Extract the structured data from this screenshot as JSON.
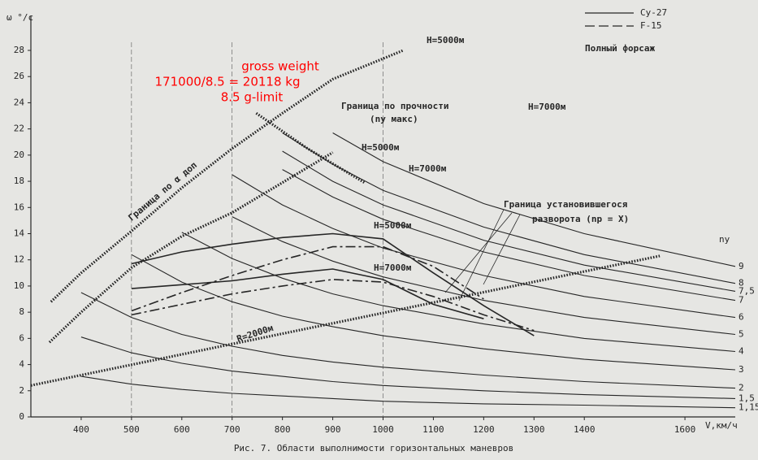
{
  "chart_data": {
    "type": "line",
    "title": "Рис. 7. Области выполнимости горизонтальных маневров",
    "y_label": "ω °/c",
    "x_label": "V,км/ч",
    "xlim": [
      300,
      1700
    ],
    "ylim": [
      0,
      28
    ],
    "xticks": [
      400,
      500,
      600,
      700,
      800,
      900,
      1000,
      1100,
      1200,
      1300,
      1400,
      1600
    ],
    "yticks": [
      0,
      2,
      4,
      6,
      8,
      10,
      12,
      14,
      16,
      18,
      20,
      22,
      24,
      26,
      28
    ],
    "xgrid": [
      500,
      700,
      1000
    ],
    "color": "#262626",
    "legend_position": "upper right",
    "legend": [
      {
        "name": "Су-27",
        "dash": false
      },
      {
        "name": "F-15",
        "dash": true
      }
    ],
    "legend_note": "Полный форсаж",
    "series_label": "nу",
    "x": [
      400,
      500,
      600,
      700,
      800,
      900,
      1000,
      1200,
      1400,
      1700
    ],
    "series": [
      {
        "name": "9",
        "values": [
          null,
          null,
          null,
          null,
          null,
          21.7,
          19.5,
          16.3,
          14.0,
          11.5
        ]
      },
      {
        "name": "8",
        "values": [
          null,
          null,
          null,
          null,
          21.7,
          19.3,
          17.3,
          14.5,
          12.4,
          10.2
        ]
      },
      {
        "name": "7,5",
        "values": [
          null,
          null,
          null,
          null,
          20.3,
          18.0,
          16.2,
          13.5,
          11.6,
          9.6
        ]
      },
      {
        "name": "7",
        "values": [
          null,
          null,
          null,
          null,
          18.9,
          16.8,
          15.1,
          12.6,
          10.8,
          8.9
        ]
      },
      {
        "name": "6",
        "values": [
          null,
          null,
          null,
          18.5,
          16.2,
          14.4,
          12.9,
          10.8,
          9.2,
          7.6
        ]
      },
      {
        "name": "5",
        "values": [
          null,
          null,
          null,
          15.3,
          13.4,
          11.9,
          10.7,
          8.9,
          7.6,
          6.3
        ]
      },
      {
        "name": "4",
        "values": [
          null,
          null,
          14.1,
          12.1,
          10.6,
          9.4,
          8.5,
          7.1,
          6.0,
          5.0
        ]
      },
      {
        "name": "3",
        "values": [
          null,
          12.4,
          10.3,
          8.8,
          7.7,
          6.9,
          6.2,
          5.2,
          4.4,
          3.6
        ]
      },
      {
        "name": "2",
        "values": [
          9.5,
          7.6,
          6.3,
          5.4,
          4.7,
          4.2,
          3.8,
          3.2,
          2.7,
          2.2
        ]
      },
      {
        "name": "1,5",
        "values": [
          6.1,
          4.9,
          4.1,
          3.5,
          3.1,
          2.7,
          2.4,
          2.0,
          1.7,
          1.4
        ]
      },
      {
        "name": "1,15",
        "values": [
          3.1,
          2.5,
          2.1,
          1.8,
          1.6,
          1.4,
          1.2,
          1.0,
          0.9,
          0.7
        ]
      }
    ],
    "curves": [
      {
        "dash": false,
        "hatched": true,
        "x": [
          340,
          400,
          500,
          600,
          700,
          800,
          900,
          1040
        ],
        "values": [
          8.8,
          11.0,
          14.2,
          17.5,
          20.5,
          23.2,
          25.8,
          28.0
        ]
      },
      {
        "dash": false,
        "hatched": true,
        "x": [
          337,
          400,
          500,
          600,
          700,
          800,
          900
        ],
        "values": [
          5.7,
          8.0,
          11.4,
          13.8,
          15.6,
          17.9,
          20.2
        ]
      },
      {
        "dash": false,
        "hatched": true,
        "x": [
          748,
          850,
          963
        ],
        "values": [
          23.2,
          20.5,
          17.9
        ]
      },
      {
        "dash": false,
        "hatched": false,
        "x": [
          500,
          600,
          700,
          800,
          900,
          1000,
          1100,
          1200,
          1300
        ],
        "values": [
          11.7,
          12.6,
          13.2,
          13.7,
          14.0,
          13.6,
          11.0,
          8.5,
          6.2
        ]
      },
      {
        "dash": false,
        "hatched": false,
        "x": [
          500,
          600,
          700,
          800,
          900,
          1000,
          1100,
          1200
        ],
        "values": [
          9.8,
          10.1,
          10.4,
          10.9,
          11.3,
          10.5,
          8.6,
          7.5
        ]
      },
      {
        "dash": true,
        "hatched": false,
        "x": [
          500,
          600,
          700,
          800,
          900,
          1000,
          1100,
          1200
        ],
        "values": [
          8.1,
          9.5,
          10.8,
          12.0,
          13.0,
          13.0,
          11.5,
          9.0
        ]
      },
      {
        "dash": true,
        "hatched": false,
        "x": [
          500,
          600,
          700,
          800,
          900,
          1000,
          1100,
          1200,
          1300
        ],
        "values": [
          7.8,
          8.6,
          9.4,
          10.0,
          10.5,
          10.3,
          9.2,
          7.8,
          6.6
        ]
      },
      {
        "dash": false,
        "hatched": true,
        "x": [
          300,
          1550
        ],
        "values": [
          2.4,
          12.3
        ]
      }
    ],
    "annotations": [
      "H=5000м",
      "H=7000м",
      "H=5000м",
      "H=7000м",
      "H=5000м",
      "H=7000м",
      "Граница по прочности",
      "(nу макс)",
      "Граница по α доп",
      "Граница установившегося",
      "разворота (nр = X)",
      "R=2000м"
    ],
    "notes": [
      "gross weight",
      "171000/8.5 = 20118 kg",
      "8.5 g-limit"
    ],
    "note_color": "#ff0000"
  }
}
